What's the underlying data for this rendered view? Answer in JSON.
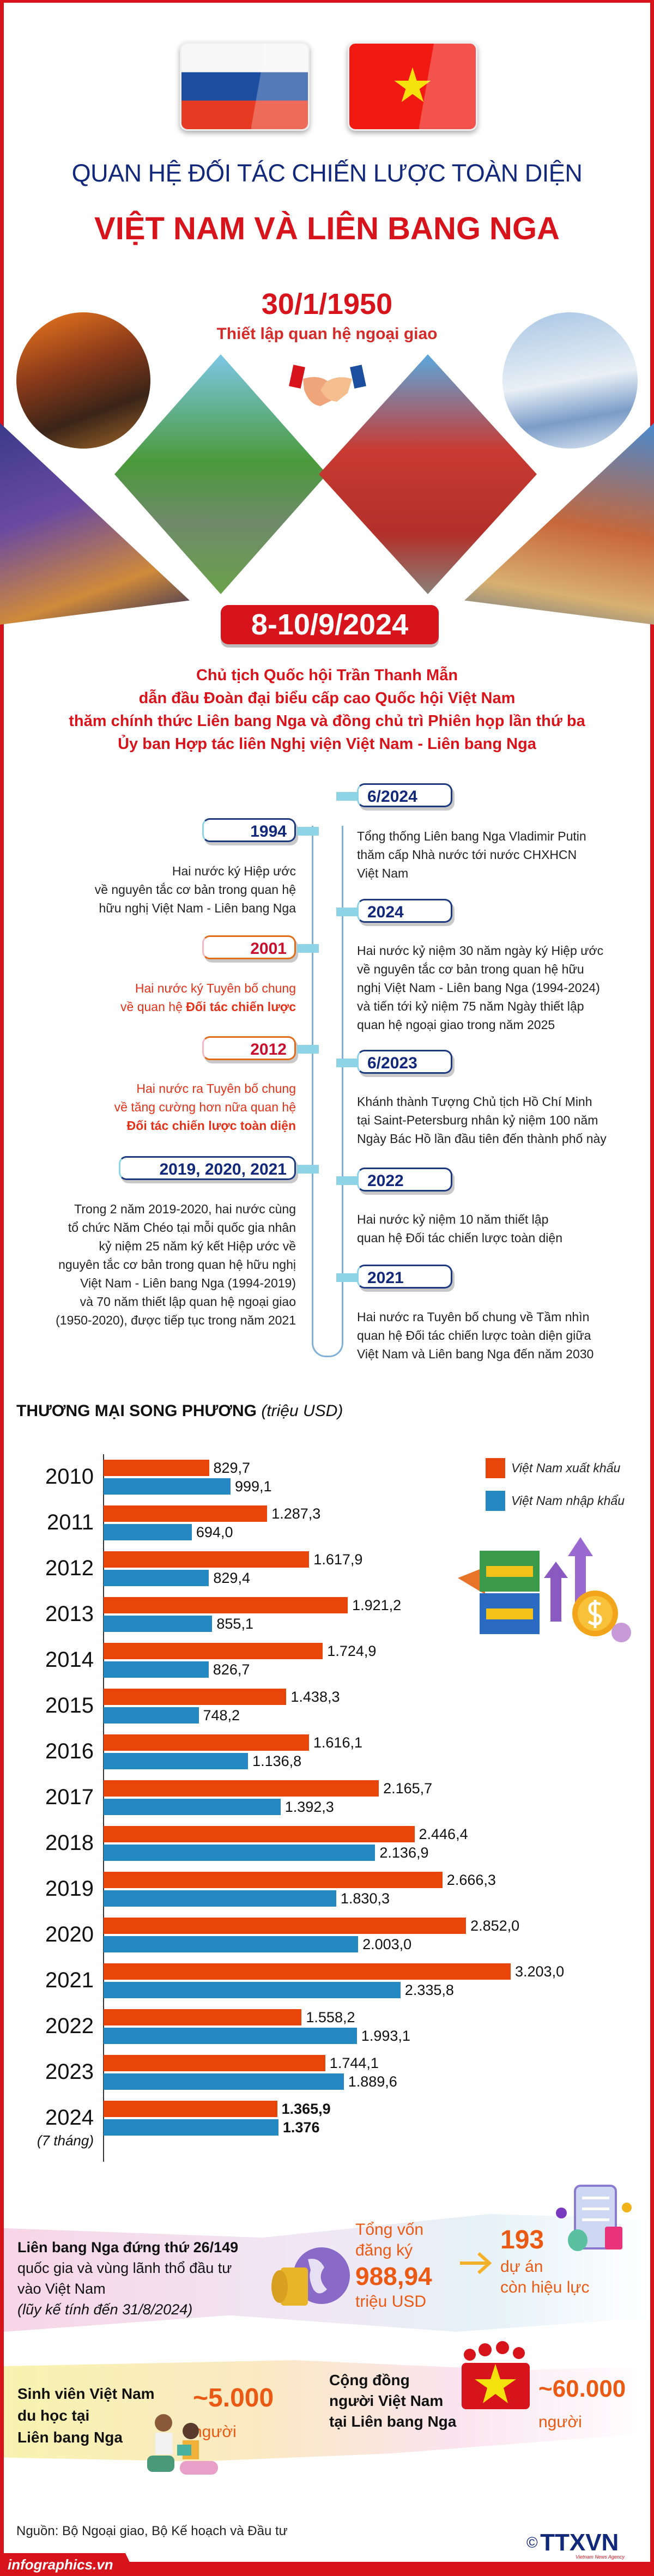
{
  "header": {
    "title_line1": "QUAN HỆ ĐỐI TÁC CHIẾN LƯỢC TOÀN DIỆN",
    "title_line2": "VIỆT NAM VÀ LIÊN BANG NGA",
    "flags": [
      "russia-flag",
      "vietnam-flag"
    ],
    "est_date": "30/1/1950",
    "est_label": "Thiết lập quan hệ ngoại giao"
  },
  "visit": {
    "date": "8-10/9/2024",
    "lines": [
      "Chủ tịch Quốc hội Trần Thanh Mẫn",
      "dẫn đầu Đoàn đại biểu cấp cao Quốc hội Việt Nam",
      "thăm chính thức Liên bang Nga và đồng chủ trì Phiên họp lần thứ ba",
      "Ủy ban Hợp tác liên Nghị viện Việt Nam - Liên bang Nga"
    ]
  },
  "timeline": {
    "left": [
      {
        "year": "1994",
        "color": "blue",
        "lines": [
          {
            "t": "Hai nước ký Hiệp ước"
          },
          {
            "t": "về nguyên tắc cơ bản trong quan hệ"
          },
          {
            "t": "hữu nghị Việt Nam - Liên bang Nga"
          }
        ]
      },
      {
        "year": "2001",
        "color": "red",
        "lines": [
          {
            "t": "Hai nước ký Tuyên bố chung"
          },
          {
            "t": "về quan hệ ",
            "b": "Đối tác chiến lược"
          }
        ]
      },
      {
        "year": "2012",
        "color": "red",
        "lines": [
          {
            "t": "Hai nước ra Tuyên bố chung"
          },
          {
            "t": "về tăng cường hơn nữa quan hệ"
          },
          {
            "b": "Đối tác chiến lược toàn diện"
          }
        ]
      },
      {
        "year": "2019, 2020, 2021",
        "color": "blue",
        "lines": [
          {
            "t": "Trong 2 năm 2019-2020, hai nước cùng"
          },
          {
            "t": "tổ chức Năm Chéo tại mỗi quốc gia nhân"
          },
          {
            "t": "kỷ niệm 25 năm ký kết Hiệp ước về"
          },
          {
            "t": "nguyên tắc cơ bản trong quan hệ hữu nghị"
          },
          {
            "t": "Việt Nam - Liên bang Nga (1994-2019)"
          },
          {
            "t": "và 70 năm thiết lập quan hệ ngoại giao"
          },
          {
            "t": "(1950-2020), được tiếp tục trong năm 2021"
          }
        ]
      }
    ],
    "right": [
      {
        "year": "6/2024",
        "lines": [
          {
            "t": "Tổng thống Liên bang Nga Vladimir Putin"
          },
          {
            "t": "thăm cấp Nhà nước tới nước CHXHCN"
          },
          {
            "t": "Việt Nam"
          }
        ]
      },
      {
        "year": "2024",
        "lines": [
          {
            "t": "Hai nước kỷ niệm 30 năm ngày ký Hiệp ước"
          },
          {
            "t": "về nguyên tắc cơ bản trong quan hệ hữu"
          },
          {
            "t": "nghị Việt Nam - Liên bang Nga (1994-2024)"
          },
          {
            "t": "và tiến tới kỷ niệm 75 năm Ngày thiết lập"
          },
          {
            "t": "quan hệ ngoại giao trong năm 2025"
          }
        ]
      },
      {
        "year": "6/2023",
        "lines": [
          {
            "t": "Khánh thành Tượng Chủ tịch Hồ Chí Minh"
          },
          {
            "t": "tại Saint-Petersburg nhân kỷ niệm 100 năm"
          },
          {
            "t": "Ngày Bác Hồ lần đầu tiên đến thành phố này"
          }
        ]
      },
      {
        "year": "2022",
        "lines": [
          {
            "t": "Hai nước kỷ niệm 10 năm thiết lập"
          },
          {
            "t": "quan hệ Đối tác chiến lược toàn diện"
          }
        ]
      },
      {
        "year": "2021",
        "lines": [
          {
            "t": "Hai nước ra Tuyên bố chung về Tầm nhìn"
          },
          {
            "t": "quan hệ Đối tác chiến lược toàn diện giữa"
          },
          {
            "t": "Việt Nam và Liên bang Nga đến năm 2030"
          }
        ]
      }
    ]
  },
  "chart_data": {
    "type": "bar",
    "orientation": "horizontal",
    "title": "THƯƠNG MẠI SONG PHƯƠNG",
    "unit": "(triệu USD)",
    "categories": [
      "2010",
      "2011",
      "2012",
      "2013",
      "2014",
      "2015",
      "2016",
      "2017",
      "2018",
      "2019",
      "2020",
      "2021",
      "2022",
      "2023",
      "2024"
    ],
    "category_notes": {
      "2024": "(7 tháng)"
    },
    "series": [
      {
        "name": "Việt Nam xuất khẩu",
        "color": "#e8450a",
        "values": [
          829.7,
          1287.3,
          1617.9,
          1921.2,
          1724.9,
          1438.3,
          1616.1,
          2165.7,
          2446.4,
          2666.3,
          2852.0,
          3203.0,
          1558.2,
          1744.1,
          1365.9
        ],
        "labels": [
          "829,7",
          "1.287,3",
          "1.617,9",
          "1.921,2",
          "1.724,9",
          "1.438,3",
          "1.616,1",
          "2.165,7",
          "2.446,4",
          "2.666,3",
          "2.852,0",
          "3.203,0",
          "1.558,2",
          "1.744,1",
          "1.365,9"
        ]
      },
      {
        "name": "Việt Nam nhập khẩu",
        "color": "#2389c0",
        "values": [
          999.1,
          694.0,
          829.4,
          855.1,
          826.7,
          748.2,
          1136.8,
          1392.3,
          2136.9,
          1830.3,
          2003.0,
          2335.8,
          1993.1,
          1889.6,
          1376
        ],
        "labels": [
          "999,1",
          "694,0",
          "829,4",
          "855,1",
          "826,7",
          "748,2",
          "1.136,8",
          "1.392,3",
          "2.136,9",
          "1.830,3",
          "2.003,0",
          "2.335,8",
          "1.993,1",
          "1.889,6",
          "1.376"
        ]
      }
    ],
    "legend": "top-right",
    "grid": false
  },
  "investment": {
    "rank_bold": "Liên bang Nga đứng thứ 26/149",
    "rank_line2": "quốc gia và vùng lãnh thổ đầu tư",
    "rank_line3": "vào Việt Nam",
    "rank_note": "(lũy kế tính đến 31/8/2024)",
    "capital_label1": "Tổng vốn",
    "capital_label2": "đăng ký",
    "capital_value": "988,94",
    "capital_unit": "triệu USD",
    "projects_value": "193",
    "projects_label1": "dự án",
    "projects_label2": "còn hiệu lực"
  },
  "people": {
    "students_line1": "Sinh viên Việt Nam",
    "students_line2": "du học tại",
    "students_line3": "Liên bang Nga",
    "students_value": "~5.000",
    "students_unit": "người",
    "community_line1": "Cộng đồng",
    "community_line2": "người Việt Nam",
    "community_line3": "tại Liên bang Nga",
    "community_value": "~60.000",
    "community_unit": "người"
  },
  "footer": {
    "source": "Nguồn: Bộ Ngoại giao, Bộ Kế hoạch và Đầu tư",
    "site": "infographics.vn",
    "logo": "TTXVN",
    "logo_sub": "Vietnam News Agency",
    "copyright": "©"
  },
  "colors": {
    "title_blue": "#12287a",
    "red": "#d7141b",
    "export": "#e8450a",
    "import": "#2389c0",
    "orange_text": "#ea5a14"
  }
}
